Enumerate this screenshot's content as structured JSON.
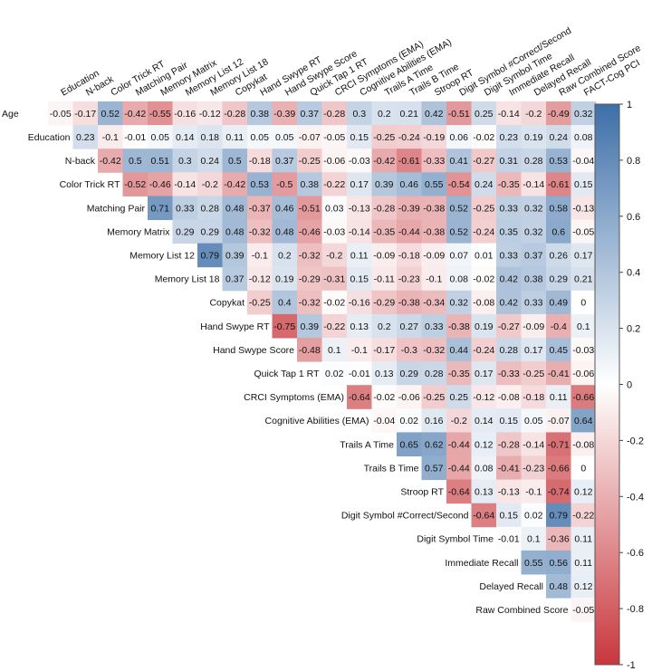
{
  "chart_data": {
    "type": "heatmap",
    "subtype": "upper-triangular correlation matrix",
    "title": "",
    "columns": [
      "Education",
      "N-back",
      "Color Trick RT",
      "Matching Pair",
      "Memory Matrix",
      "Memory List 12",
      "Memory List 18",
      "Copykat",
      "Hand Swype RT",
      "Hand Swype Score",
      "Quick Tap 1 RT",
      "CRCI Symptoms (EMA)",
      "Cognitive Abilities (EMA)",
      "Trails A Time",
      "Trails B Time",
      "Stroop RT",
      "Digit Symbol #Correct/Second",
      "Digit Symbol Time",
      "Immediate Recall",
      "Delayed Recall",
      "Raw Combined Score",
      "FACT-Cog PCI"
    ],
    "rows": [
      {
        "label": "Age",
        "values": [
          -0.05,
          -0.17,
          0.52,
          -0.42,
          -0.55,
          -0.16,
          -0.12,
          -0.28,
          0.38,
          -0.39,
          0.37,
          -0.28,
          0.3,
          0.2,
          0.21,
          0.42,
          -0.51,
          0.25,
          -0.14,
          -0.2,
          -0.49,
          0.32
        ]
      },
      {
        "label": "Education",
        "values": [
          0.23,
          -0.1,
          -0.01,
          0.05,
          0.14,
          0.18,
          0.11,
          0.05,
          0.05,
          -0.07,
          -0.05,
          0.15,
          -0.25,
          -0.24,
          -0.19,
          0.06,
          -0.02,
          0.23,
          0.19,
          0.24,
          0.08
        ]
      },
      {
        "label": "N-back",
        "values": [
          -0.42,
          0.5,
          0.51,
          0.3,
          0.24,
          0.5,
          -0.18,
          0.37,
          -0.25,
          -0.06,
          -0.03,
          -0.42,
          -0.61,
          -0.33,
          0.41,
          -0.27,
          0.31,
          0.28,
          0.53,
          -0.04
        ]
      },
      {
        "label": "Color Trick RT",
        "values": [
          -0.52,
          -0.46,
          -0.14,
          -0.2,
          -0.42,
          0.53,
          -0.5,
          0.38,
          -0.22,
          0.17,
          0.39,
          0.46,
          0.55,
          -0.54,
          0.24,
          -0.35,
          -0.14,
          -0.61,
          0.15
        ]
      },
      {
        "label": "Matching Pair",
        "values": [
          0.71,
          0.33,
          0.28,
          0.48,
          -0.37,
          0.46,
          -0.51,
          0.03,
          -0.13,
          -0.28,
          -0.39,
          -0.38,
          0.52,
          -0.25,
          0.33,
          0.32,
          0.58,
          -0.13
        ]
      },
      {
        "label": "Memory Matrix",
        "values": [
          0.29,
          0.29,
          0.48,
          -0.32,
          0.48,
          -0.46,
          -0.03,
          -0.14,
          -0.35,
          -0.44,
          -0.38,
          0.52,
          -0.24,
          0.35,
          0.32,
          0.6,
          -0.05
        ]
      },
      {
        "label": "Memory List 12",
        "values": [
          0.79,
          0.39,
          -0.1,
          0.2,
          -0.32,
          -0.2,
          0.11,
          -0.09,
          -0.18,
          -0.09,
          0.07,
          0.01,
          0.33,
          0.37,
          0.26,
          0.17
        ]
      },
      {
        "label": "Memory List 18",
        "values": [
          0.37,
          -0.12,
          0.19,
          -0.29,
          -0.31,
          0.15,
          -0.11,
          -0.23,
          -0.1,
          0.08,
          -0.02,
          0.42,
          0.38,
          0.29,
          0.21
        ]
      },
      {
        "label": "Copykat",
        "values": [
          -0.25,
          0.4,
          -0.32,
          -0.02,
          -0.16,
          -0.29,
          -0.38,
          -0.34,
          0.32,
          -0.08,
          0.42,
          0.33,
          0.49,
          0
        ]
      },
      {
        "label": "Hand Swype RT",
        "values": [
          -0.75,
          0.39,
          -0.22,
          0.13,
          0.2,
          0.27,
          0.33,
          -0.38,
          0.19,
          -0.27,
          -0.09,
          -0.4,
          0.1
        ]
      },
      {
        "label": "Hand Swype Score",
        "values": [
          -0.48,
          0.1,
          -0.1,
          -0.17,
          -0.3,
          -0.32,
          0.44,
          -0.24,
          0.28,
          0.17,
          0.45,
          -0.03
        ]
      },
      {
        "label": "Quick Tap 1 RT",
        "values": [
          0.02,
          -0.01,
          0.13,
          0.29,
          0.28,
          -0.35,
          0.17,
          -0.33,
          -0.25,
          -0.41,
          -0.06
        ]
      },
      {
        "label": "CRCI Symptoms (EMA)",
        "values": [
          -0.64,
          -0.02,
          -0.06,
          -0.25,
          0.25,
          -0.12,
          -0.08,
          -0.18,
          0.11,
          -0.66
        ]
      },
      {
        "label": "Cognitive Abilities (EMA)",
        "values": [
          -0.04,
          0.02,
          0.16,
          -0.2,
          0.14,
          0.15,
          0.05,
          -0.07,
          0.64
        ]
      },
      {
        "label": "Trails A Time",
        "values": [
          0.65,
          0.62,
          -0.44,
          0.12,
          -0.28,
          -0.14,
          -0.71,
          -0.08
        ]
      },
      {
        "label": "Trails B Time",
        "values": [
          0.57,
          -0.44,
          0.08,
          -0.41,
          -0.23,
          -0.66,
          0
        ]
      },
      {
        "label": "Stroop RT",
        "values": [
          -0.64,
          0.13,
          -0.13,
          -0.1,
          -0.74,
          0.12
        ]
      },
      {
        "label": "Digit Symbol #Correct/Second",
        "values": [
          -0.64,
          0.15,
          0.02,
          0.79,
          -0.22
        ]
      },
      {
        "label": "Digit Symbol Time",
        "values": [
          -0.01,
          0.1,
          -0.36,
          0.11
        ]
      },
      {
        "label": "Immediate Recall",
        "values": [
          0.55,
          0.56,
          0.11
        ]
      },
      {
        "label": "Delayed Recall",
        "values": [
          0.48,
          0.12
        ]
      },
      {
        "label": "Raw Combined Score",
        "values": [
          -0.05
        ]
      }
    ],
    "colorbar": {
      "range": [
        -1,
        1
      ],
      "ticks": [
        1,
        0.8,
        0.6,
        0.4,
        0.2,
        0,
        -0.2,
        -0.4,
        -0.6,
        -0.8,
        -1
      ],
      "negative_color": "#c8373c",
      "neutral_color": "#ffffff",
      "positive_color": "#3d6fa8"
    }
  }
}
